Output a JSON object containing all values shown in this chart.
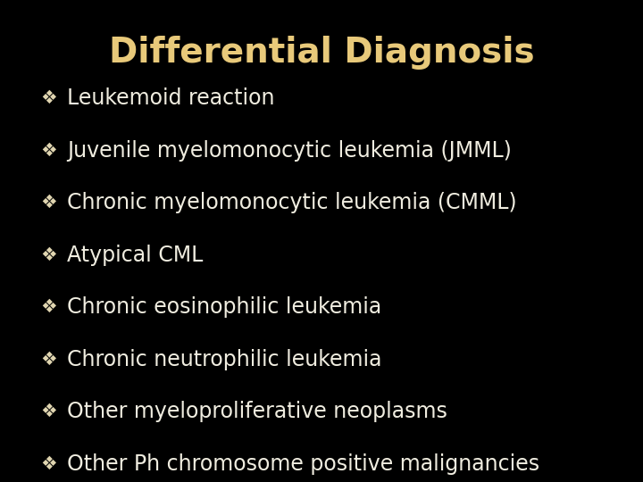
{
  "title": "Differential Diagnosis",
  "title_color": "#E8C97A",
  "title_fontsize": 28,
  "title_fontstyle": "normal",
  "title_fontweight": "bold",
  "background_color": "#000000",
  "bullet_symbol": "❖",
  "bullet_color": "#E0D5B0",
  "text_color": "#F0EDE0",
  "text_fontsize": 17,
  "items": [
    "Leukemoid reaction",
    "Juvenile myelomonocytic leukemia (JMML)",
    "Chronic myelomonocytic leukemia (CMML)",
    "Atypical CML",
    "Chronic eosinophilic leukemia",
    "Chronic neutrophilic leukemia",
    "Other myeloproliferative neoplasms",
    "Other Ph chromosome positive malignancies"
  ]
}
